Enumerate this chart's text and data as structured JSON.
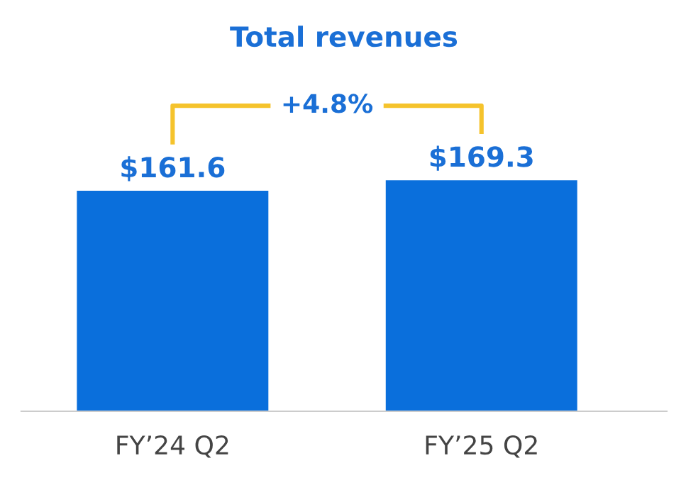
{
  "chart_data": {
    "type": "bar",
    "title": "Total revenues",
    "categories": [
      "FY’24 Q2",
      "FY’25 Q2"
    ],
    "values": [
      161.6,
      169.3
    ],
    "value_labels": [
      "$161.6",
      "$169.3"
    ],
    "color": "#0a6fdc",
    "annotations": [
      "+4.8%"
    ],
    "grid": false,
    "legend": false,
    "tick_labels": "x"
  }
}
